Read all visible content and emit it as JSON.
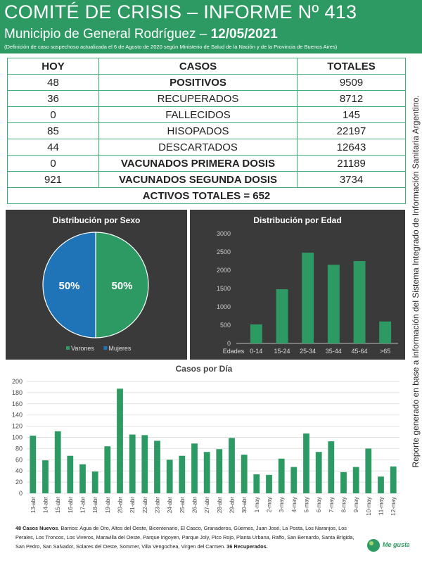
{
  "header": {
    "title": "COMITÉ DE CRISIS – INFORME Nº 413",
    "subtitle": "Municipio de General Rodríguez – ",
    "date": "12/05/2021",
    "note": "(Definición de caso sospechoso actualizada el 6 de Agosto de 2020 según Ministerio de Salud de la Nación y de la Provincia de Buenos Aires)"
  },
  "table": {
    "headers": [
      "HOY",
      "CASOS",
      "TOTALES"
    ],
    "rows": [
      {
        "hoy": "48",
        "caso": "POSITIVOS",
        "total": "9509"
      },
      {
        "hoy": "36",
        "caso": "RECUPERADOS",
        "total": "8712"
      },
      {
        "hoy": "0",
        "caso": "FALLECIDOS",
        "total": "145"
      },
      {
        "hoy": "85",
        "caso": "HISOPADOS",
        "total": "22197"
      },
      {
        "hoy": "44",
        "caso": "DESCARTADOS",
        "total": "12643"
      },
      {
        "hoy": "0",
        "caso": "VACUNADOS PRIMERA DOSIS",
        "total": "21189"
      },
      {
        "hoy": "921",
        "caso": "VACUNADOS SEGUNDA DOSIS",
        "total": "3734"
      }
    ],
    "activos": "ACTIVOS TOTALES = 652"
  },
  "side_note": "Reporte generado en base a información del Sistema Integrado de Información Sanitaria Argentino.",
  "footer": {
    "new_cases_label": "48 Casos Nuevos",
    "barrios": ". Barrios: Agua de Oro, Altos del Oeste, Bicentenario, El Casco, Granaderos, Güemes, Juan José, La Posta, Los Naranjos, Los Perales, Los Troncos, Los Viveros, Maravilla del Oeste, Parque Irigoyen, Parque Joly, Pico Rojo, Planta Urbana, Raffo, San Bernardo, Santa Brígida, San Pedro, San Salvador, Solares del Oeste, Sommer, Villa Vengochea, Virgen del Carmen. ",
    "recovered_label": "36 Recuperados."
  },
  "logo": {
    "text": "Me gusta"
  },
  "colors": {
    "green": "#2e9a63",
    "blue": "#1f73b7",
    "orange": "#e8a020",
    "panel": "#3a3a3a"
  },
  "chart_data": [
    {
      "type": "pie",
      "title": "Distribución por Sexo",
      "slices": [
        {
          "name": "Varones",
          "value": 50,
          "label": "50%",
          "color": "#2e9a63"
        },
        {
          "name": "Mujeres",
          "value": 50,
          "label": "50%",
          "color": "#1f73b7"
        }
      ],
      "legend": "bottom"
    },
    {
      "type": "bar",
      "title": "Distribución por Edad",
      "xlabel": "Edades",
      "categories": [
        "0-14",
        "15-24",
        "25-34",
        "35-44",
        "45-64",
        ">65"
      ],
      "values": [
        520,
        1480,
        2480,
        2150,
        2250,
        600
      ],
      "yticks": [
        0,
        500,
        1000,
        1500,
        2000,
        2500,
        3000
      ],
      "ylim": [
        0,
        3000
      ],
      "grid": false
    },
    {
      "type": "bar",
      "title": "Casos por Día",
      "categories": [
        "13-abr",
        "14-abr",
        "15-abr",
        "16-abr",
        "17-abr",
        "18-abr",
        "19-abr",
        "20-abr",
        "21-abr",
        "22-abr",
        "23-abr",
        "24-abr",
        "25-abr",
        "26-abr",
        "27-abr",
        "28-abr",
        "29-abr",
        "30-abr",
        "1-may",
        "2-may",
        "3-may",
        "4-may",
        "5-may",
        "6-may",
        "7-may",
        "8-may",
        "9-may",
        "10-may",
        "11-may",
        "12-may"
      ],
      "values": [
        103,
        59,
        111,
        67,
        52,
        39,
        84,
        187,
        105,
        104,
        94,
        60,
        67,
        89,
        74,
        79,
        99,
        69,
        34,
        33,
        62,
        47,
        107,
        74,
        93,
        38,
        47,
        80,
        30,
        48
      ],
      "yticks": [
        0,
        20,
        40,
        60,
        80,
        100,
        120,
        140,
        160,
        180,
        200
      ],
      "ylim": [
        0,
        200
      ],
      "grid": true
    }
  ]
}
